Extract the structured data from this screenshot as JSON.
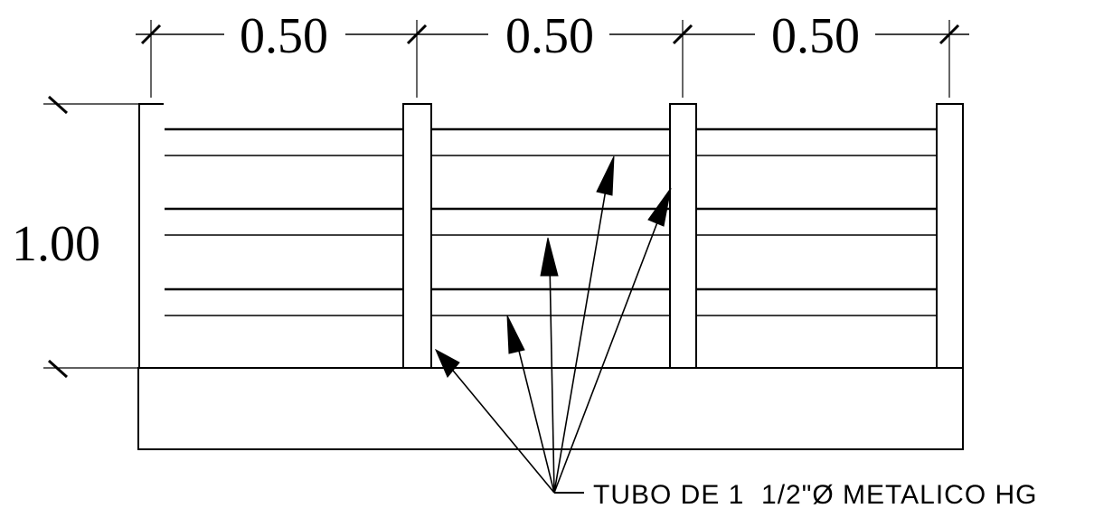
{
  "dimensions": {
    "widths": [
      "0.50",
      "0.50",
      "0.50"
    ],
    "height": "1.00"
  },
  "note": {
    "label": "TUBO DE 1  1/2\"Ø METALICO HG"
  },
  "colors": {
    "line": "#000000",
    "background": "#ffffff"
  }
}
